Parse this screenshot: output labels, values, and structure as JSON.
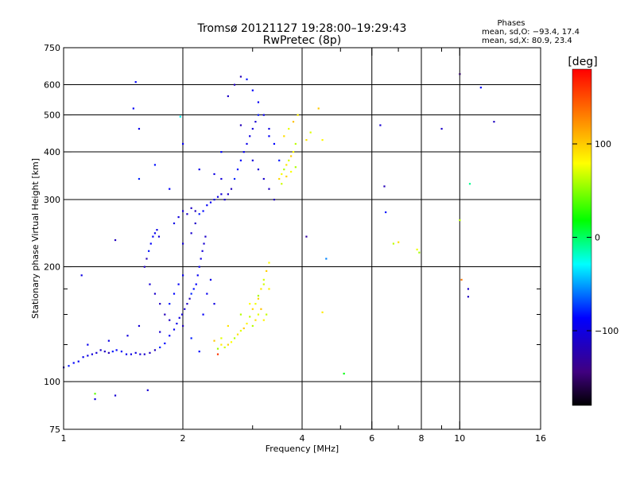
{
  "chart_data": {
    "type": "scatter",
    "title": "Tromsø 20121127 19:28:00–19:29:43",
    "subtitle": "RwPretec (8p)",
    "xlabel": "Frequency [MHz]",
    "ylabel": "Stationary phase Virtual Height [km]",
    "x_scale": "log",
    "y_scale": "log",
    "xlim": [
      1,
      16
    ],
    "ylim": [
      75,
      750
    ],
    "x_ticks": [
      1,
      2,
      4,
      6,
      8,
      10,
      16
    ],
    "x_tick_labels": [
      "1",
      "2",
      "4",
      "6",
      "8",
      "10",
      "16"
    ],
    "x_minor_ticks": [
      3,
      5,
      7,
      9
    ],
    "y_ticks": [
      75,
      100,
      200,
      300,
      400,
      500,
      600,
      750
    ],
    "y_tick_labels": [
      "75",
      "100",
      "200",
      "300",
      "400",
      "500",
      "600",
      "750"
    ],
    "y_minor_ticks": [
      125,
      150,
      175
    ],
    "grid": true,
    "stats": {
      "heading": "Phases",
      "line1": "mean, sd,O: −93.4, 17.4",
      "line2": "mean, sd,X:  80.9, 23.4"
    },
    "colorbar": {
      "label": "[deg]",
      "range": [
        -180,
        180
      ],
      "ticks": [
        100,
        0,
        -100
      ],
      "tick_labels": [
        "100",
        "0",
        "−100"
      ]
    },
    "series": [
      {
        "mode": "O",
        "mean_phase": -93.4,
        "points": [
          [
            1.0,
            109
          ],
          [
            1.03,
            110
          ],
          [
            1.06,
            112
          ],
          [
            1.09,
            113
          ],
          [
            1.12,
            116
          ],
          [
            1.15,
            117
          ],
          [
            1.18,
            118
          ],
          [
            1.21,
            119
          ],
          [
            1.24,
            121
          ],
          [
            1.27,
            120
          ],
          [
            1.3,
            119
          ],
          [
            1.33,
            120
          ],
          [
            1.36,
            121
          ],
          [
            1.4,
            120
          ],
          [
            1.44,
            118
          ],
          [
            1.48,
            118
          ],
          [
            1.52,
            119
          ],
          [
            1.56,
            118
          ],
          [
            1.6,
            118
          ],
          [
            1.65,
            119
          ],
          [
            1.7,
            121
          ],
          [
            1.75,
            123
          ],
          [
            1.8,
            126
          ],
          [
            1.85,
            132
          ],
          [
            1.9,
            137
          ],
          [
            1.93,
            142
          ],
          [
            1.96,
            147
          ],
          [
            1.99,
            150
          ],
          [
            2.02,
            155
          ],
          [
            2.05,
            160
          ],
          [
            2.08,
            165
          ],
          [
            2.1,
            170
          ],
          [
            2.13,
            175
          ],
          [
            2.16,
            180
          ],
          [
            2.18,
            190
          ],
          [
            2.2,
            200
          ],
          [
            2.22,
            210
          ],
          [
            2.24,
            220
          ],
          [
            2.26,
            230
          ],
          [
            2.28,
            240
          ],
          [
            1.6,
            200
          ],
          [
            1.62,
            210
          ],
          [
            1.64,
            220
          ],
          [
            1.66,
            230
          ],
          [
            1.68,
            240
          ],
          [
            1.7,
            245
          ],
          [
            1.72,
            250
          ],
          [
            1.74,
            240
          ],
          [
            1.65,
            180
          ],
          [
            1.7,
            170
          ],
          [
            1.75,
            160
          ],
          [
            1.8,
            150
          ],
          [
            1.85,
            160
          ],
          [
            1.9,
            170
          ],
          [
            1.95,
            180
          ],
          [
            2.0,
            190
          ],
          [
            1.9,
            260
          ],
          [
            1.95,
            270
          ],
          [
            2.0,
            280
          ],
          [
            2.05,
            275
          ],
          [
            2.1,
            285
          ],
          [
            2.15,
            280
          ],
          [
            2.2,
            275
          ],
          [
            2.25,
            280
          ],
          [
            2.3,
            290
          ],
          [
            2.35,
            295
          ],
          [
            2.4,
            300
          ],
          [
            2.45,
            305
          ],
          [
            2.5,
            310
          ],
          [
            2.55,
            300
          ],
          [
            2.6,
            310
          ],
          [
            2.65,
            320
          ],
          [
            2.7,
            340
          ],
          [
            2.75,
            360
          ],
          [
            2.8,
            380
          ],
          [
            2.85,
            400
          ],
          [
            2.9,
            420
          ],
          [
            2.95,
            440
          ],
          [
            3.0,
            460
          ],
          [
            3.05,
            480
          ],
          [
            2.6,
            560
          ],
          [
            2.7,
            600
          ],
          [
            2.8,
            630
          ],
          [
            2.9,
            620
          ],
          [
            3.0,
            580
          ],
          [
            3.1,
            540
          ],
          [
            3.2,
            500
          ],
          [
            3.3,
            460
          ],
          [
            3.0,
            380
          ],
          [
            3.1,
            360
          ],
          [
            3.2,
            340
          ],
          [
            3.3,
            320
          ],
          [
            3.4,
            300
          ],
          [
            3.5,
            380
          ],
          [
            3.4,
            420
          ],
          [
            3.3,
            440
          ],
          [
            1.15,
            125
          ],
          [
            1.3,
            128
          ],
          [
            1.45,
            132
          ],
          [
            1.55,
            140
          ],
          [
            1.75,
            135
          ],
          [
            1.85,
            145
          ],
          [
            2.0,
            140
          ],
          [
            2.1,
            130
          ],
          [
            2.2,
            120
          ],
          [
            2.25,
            150
          ],
          [
            2.3,
            170
          ],
          [
            2.35,
            185
          ],
          [
            2.4,
            160
          ],
          [
            2.0,
            230
          ],
          [
            2.1,
            245
          ],
          [
            2.15,
            260
          ],
          [
            1.35,
            235
          ],
          [
            1.55,
            340
          ],
          [
            1.7,
            370
          ],
          [
            1.85,
            320
          ],
          [
            2.0,
            420
          ],
          [
            2.2,
            360
          ],
          [
            2.4,
            350
          ],
          [
            2.5,
            340
          ],
          [
            6.3,
            470
          ],
          [
            9.0,
            460
          ],
          [
            12.2,
            480
          ],
          [
            6.45,
            325
          ],
          [
            6.5,
            278
          ],
          [
            1.52,
            610
          ],
          [
            1.5,
            520
          ],
          [
            1.55,
            460
          ],
          [
            1.11,
            190
          ],
          [
            1.2,
            90
          ],
          [
            1.35,
            92
          ],
          [
            10.5,
            175
          ],
          [
            10.5,
            167
          ],
          [
            2.8,
            470
          ],
          [
            3.1,
            500
          ],
          [
            2.5,
            400
          ]
        ]
      },
      {
        "mode": "X",
        "mean_phase": 80.9,
        "points": [
          [
            2.45,
            122
          ],
          [
            2.5,
            125
          ],
          [
            2.55,
            123
          ],
          [
            2.6,
            125
          ],
          [
            2.65,
            127
          ],
          [
            2.7,
            130
          ],
          [
            2.75,
            133
          ],
          [
            2.8,
            136
          ],
          [
            2.85,
            138
          ],
          [
            2.9,
            142
          ],
          [
            2.95,
            148
          ],
          [
            3.0,
            155
          ],
          [
            3.05,
            160
          ],
          [
            3.1,
            168
          ],
          [
            3.15,
            175
          ],
          [
            3.2,
            185
          ],
          [
            3.25,
            195
          ],
          [
            3.3,
            205
          ],
          [
            3.0,
            140
          ],
          [
            3.05,
            145
          ],
          [
            3.1,
            150
          ],
          [
            3.15,
            155
          ],
          [
            3.2,
            145
          ],
          [
            3.25,
            150
          ],
          [
            3.5,
            340
          ],
          [
            3.55,
            350
          ],
          [
            3.6,
            360
          ],
          [
            3.65,
            370
          ],
          [
            3.7,
            380
          ],
          [
            3.75,
            390
          ],
          [
            3.8,
            400
          ],
          [
            3.85,
            420
          ],
          [
            3.6,
            440
          ],
          [
            3.7,
            460
          ],
          [
            3.8,
            480
          ],
          [
            3.9,
            500
          ],
          [
            3.55,
            330
          ],
          [
            3.65,
            345
          ],
          [
            3.75,
            355
          ],
          [
            3.85,
            365
          ],
          [
            4.1,
            430
          ],
          [
            4.2,
            450
          ],
          [
            4.4,
            520
          ],
          [
            4.5,
            430
          ],
          [
            6.8,
            230
          ],
          [
            7.0,
            232
          ],
          [
            7.8,
            222
          ],
          [
            7.9,
            218
          ],
          [
            3.3,
            175
          ],
          [
            3.2,
            180
          ],
          [
            3.1,
            165
          ],
          [
            2.95,
            160
          ],
          [
            2.8,
            150
          ],
          [
            2.6,
            140
          ],
          [
            2.5,
            130
          ],
          [
            2.4,
            128
          ]
        ]
      },
      {
        "mode": "other",
        "points": [
          [
            10.0,
            640
          ],
          [
            11.3,
            590
          ],
          [
            10.6,
            330
          ],
          [
            10.0,
            265
          ],
          [
            10.1,
            185
          ],
          [
            4.1,
            240
          ],
          [
            4.6,
            210
          ],
          [
            5.1,
            105
          ],
          [
            4.5,
            152
          ],
          [
            2.45,
            118
          ],
          [
            1.63,
            95
          ],
          [
            1.97,
            495
          ],
          [
            1.2,
            93
          ]
        ]
      }
    ]
  }
}
